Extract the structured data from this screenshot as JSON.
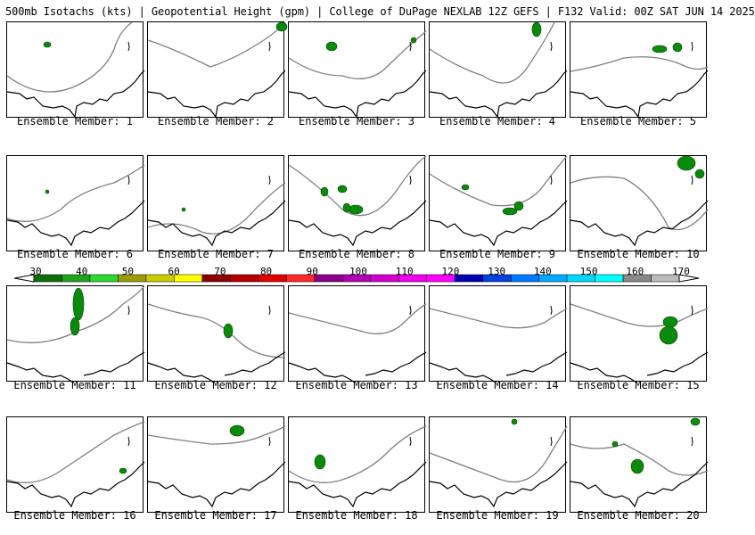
{
  "header": {
    "title": "500mb Isotachs (kts) | Geopotential Height (gpm) | College of DuPage NEXLAB   12Z GEFS | F132 Valid: 00Z SAT JUN 14 2025"
  },
  "panel_label_prefix": "Ensemble Member:",
  "members": [
    "1",
    "2",
    "3",
    "4",
    "5",
    "6",
    "7",
    "8",
    "9",
    "10",
    "11",
    "12",
    "13",
    "14",
    "15",
    "16",
    "17",
    "18",
    "19",
    "20"
  ],
  "colorbar": {
    "labels": [
      "30",
      "40",
      "50",
      "60",
      "70",
      "80",
      "90",
      "100",
      "110",
      "120",
      "130",
      "140",
      "150",
      "160",
      "170"
    ],
    "colors": [
      "#0a6e0a",
      "#1fa31f",
      "#2fd82f",
      "#9c9c0a",
      "#cccc00",
      "#ffff00",
      "#8b0000",
      "#b80000",
      "#e00000",
      "#ff2a2a",
      "#8b008b",
      "#b000b0",
      "#d000d0",
      "#ee00ee",
      "#ff00ff",
      "#0000b0",
      "#0040e0",
      "#0078ff",
      "#00aaff",
      "#00d8ff",
      "#00ffff",
      "#888888",
      "#bbbbbb"
    ]
  },
  "colors": {
    "coast": "#000000",
    "height_contour": "#808080",
    "wind_fill": "#0a8a0a"
  }
}
